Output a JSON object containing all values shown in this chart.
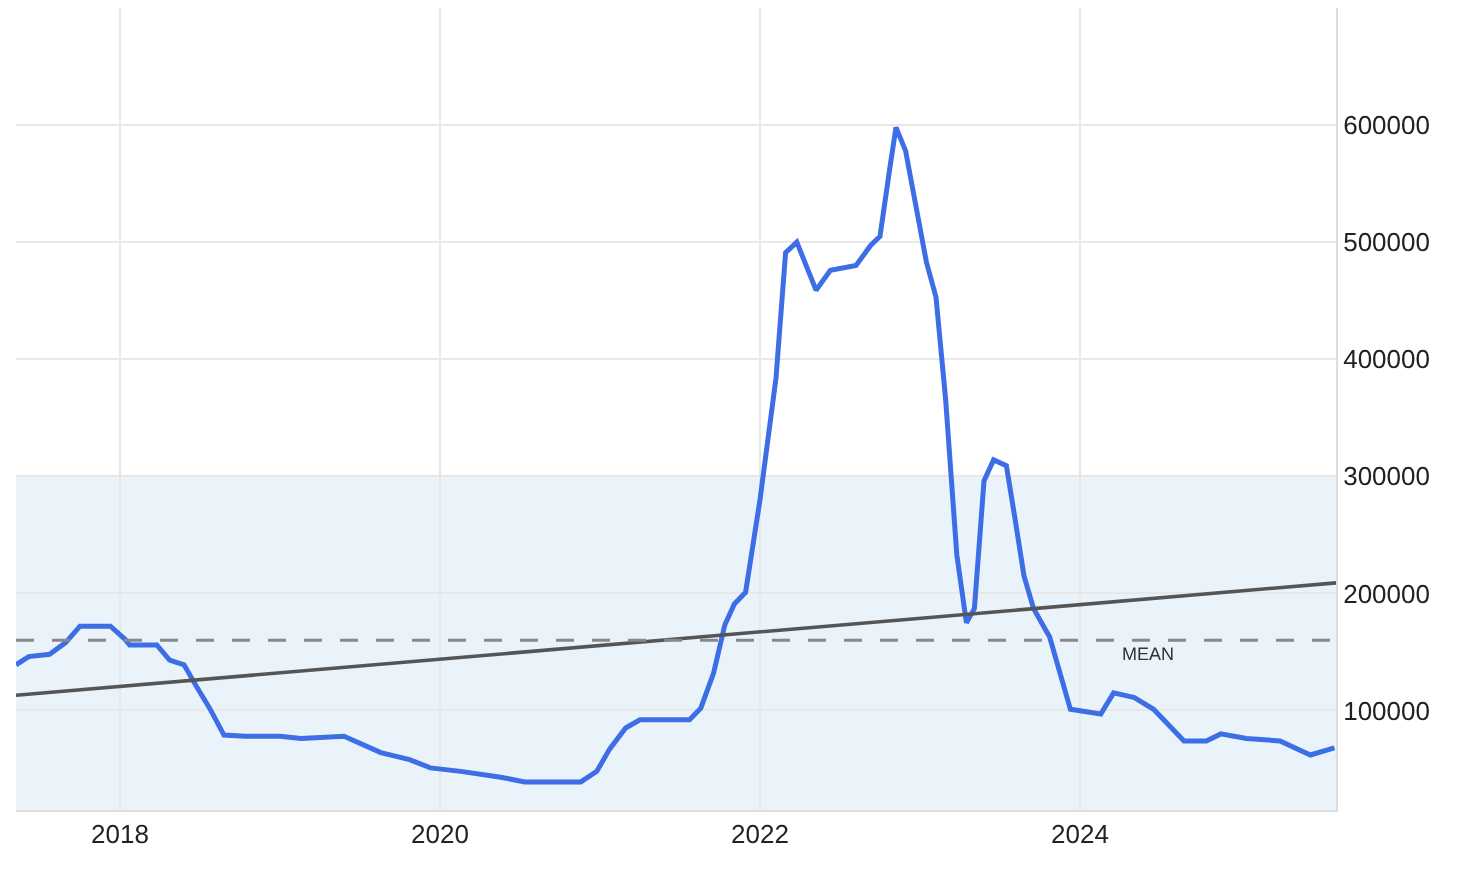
{
  "chart_data": {
    "type": "line",
    "series": [
      {
        "color": "#3d6ee6",
        "x": [
          2017.35,
          2017.43,
          2017.56,
          2017.66,
          2017.75,
          2017.94,
          2018.03,
          2018.06,
          2018.23,
          2018.31,
          2018.4,
          2018.48,
          2018.56,
          2018.65,
          2018.78,
          2019.0,
          2019.13,
          2019.4,
          2019.63,
          2019.81,
          2019.94,
          2020.13,
          2020.38,
          2020.53,
          2020.88,
          2020.98,
          2021.06,
          2021.16,
          2021.25,
          2021.56,
          2021.63,
          2021.71,
          2021.78,
          2021.84,
          2021.91,
          2022.0,
          2022.1,
          2022.16,
          2022.23,
          2022.28,
          2022.35,
          2022.44,
          2022.6,
          2022.69,
          2022.75,
          2022.81,
          2022.85,
          2022.91,
          2023.04,
          2023.1,
          2023.16,
          2023.23,
          2023.29,
          2023.34,
          2023.4,
          2023.46,
          2023.54,
          2023.59,
          2023.65,
          2023.71,
          2023.78,
          2023.81,
          2023.94,
          2024.13,
          2024.21,
          2024.34,
          2024.46,
          2024.65,
          2024.79,
          2024.88,
          2025.04,
          2025.25,
          2025.44,
          2025.59
        ],
        "values": [
          139000,
          146000,
          148000,
          158000,
          172000,
          172000,
          161000,
          156000,
          156000,
          143000,
          139000,
          120000,
          102000,
          79000,
          78000,
          78000,
          76000,
          78000,
          64000,
          58000,
          51000,
          48000,
          43000,
          39000,
          39000,
          48000,
          67000,
          85000,
          92000,
          92000,
          102000,
          132000,
          173000,
          191000,
          201000,
          280000,
          384000,
          491000,
          500000,
          483000,
          459000,
          476000,
          480000,
          497000,
          505000,
          562000,
          598000,
          578000,
          483000,
          453000,
          366000,
          233000,
          175000,
          187000,
          296000,
          314000,
          309000,
          267000,
          215000,
          187000,
          170000,
          163000,
          101000,
          97000,
          115000,
          111000,
          101000,
          74000,
          74000,
          80000,
          76000,
          74000,
          62000,
          68000
        ]
      },
      {
        "type": "line",
        "color": "#555555",
        "x": [
          2017.35,
          2025.6
        ],
        "values": [
          113000,
          209000
        ]
      }
    ],
    "xlim": [
      2017.35,
      2025.6
    ],
    "xticks": [
      2018,
      2020,
      2022,
      2024
    ],
    "ylim": [
      15000,
      700000
    ],
    "yticks": [
      100000,
      200000,
      300000,
      400000,
      500000,
      600000
    ],
    "ref_lines": [
      {
        "axis": "y",
        "value": 160000,
        "label": "MEAN",
        "color": "#888888",
        "line_style": "dashed"
      }
    ],
    "bands": [
      {
        "axis": "y",
        "from": 15000,
        "to": 300000,
        "color": "#eaf3fa"
      }
    ],
    "grid": true
  }
}
